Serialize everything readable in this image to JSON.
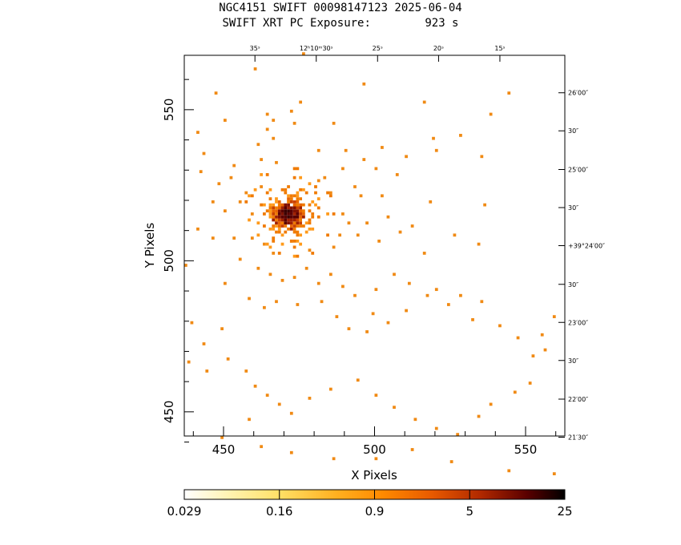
{
  "title_line1": "NGC4151 SWIFT 00098147123 2025-06-04",
  "title_line2": "SWIFT XRT PC Exposure:        923 s",
  "chart_data": {
    "type": "heatmap",
    "xlabel": "X Pixels",
    "ylabel": "Y Pixels",
    "xlim": [
      437,
      563
    ],
    "ylim": [
      442,
      568
    ],
    "x_ticks": [
      450,
      500,
      550
    ],
    "y_ticks": [
      450,
      500,
      550
    ],
    "x_tick_labels": [
      "450",
      "500",
      "550"
    ],
    "y_tick_labels": [
      "450",
      "500",
      "550"
    ],
    "ra_tick_labels": [
      {
        "x": 460.4,
        "label": "35ˢ"
      },
      {
        "x": 480.7,
        "label": "12ʰ10ᵐ30ˢ"
      },
      {
        "x": 501.0,
        "label": "25ˢ"
      },
      {
        "x": 521.2,
        "label": "20ˢ"
      },
      {
        "x": 541.5,
        "label": "15ˢ"
      }
    ],
    "dec_tick_labels": [
      {
        "y": 555.6,
        "label": "26′00″"
      },
      {
        "y": 543.0,
        "label": "30″"
      },
      {
        "y": 530.2,
        "label": "25′00″"
      },
      {
        "y": 517.6,
        "label": "30″"
      },
      {
        "y": 505.0,
        "label": "+39°24′00″"
      },
      {
        "y": 492.2,
        "label": "30″"
      },
      {
        "y": 479.6,
        "label": "23′00″"
      },
      {
        "y": 467.0,
        "label": "30″"
      },
      {
        "y": 454.2,
        "label": "22′00″"
      },
      {
        "y": 441.6,
        "label": "21′30″"
      }
    ],
    "source_center": [
      471,
      515
    ],
    "colorbar": {
      "labels": [
        "0.029",
        "0.16",
        "0.9",
        "5",
        "25"
      ],
      "scale": "log",
      "colors": [
        "#ffffff",
        "#ffe680",
        "#ffb000",
        "#ff7f00",
        "#e05000",
        "#b02800",
        "#700000",
        "#000000"
      ]
    },
    "counts_scatter": [
      [
        460,
        563
      ],
      [
        476,
        568
      ],
      [
        447,
        555
      ],
      [
        475,
        552
      ],
      [
        496,
        558
      ],
      [
        516,
        552
      ],
      [
        538,
        548
      ],
      [
        544,
        555
      ],
      [
        464,
        548
      ],
      [
        472,
        549
      ],
      [
        450,
        546
      ],
      [
        466,
        546
      ],
      [
        473,
        545
      ],
      [
        464,
        543
      ],
      [
        441,
        542
      ],
      [
        486,
        545
      ],
      [
        528,
        541
      ],
      [
        466,
        540
      ],
      [
        481,
        536
      ],
      [
        490,
        536
      ],
      [
        502,
        537
      ],
      [
        519,
        540
      ],
      [
        496,
        533
      ],
      [
        510,
        534
      ],
      [
        453,
        531
      ],
      [
        520,
        536
      ],
      [
        535,
        534
      ],
      [
        461,
        538
      ],
      [
        462,
        533
      ],
      [
        467,
        532
      ],
      [
        489,
        530
      ],
      [
        443,
        535
      ],
      [
        442,
        529
      ],
      [
        500,
        530
      ],
      [
        507,
        528
      ],
      [
        481,
        526
      ],
      [
        448,
        525
      ],
      [
        452,
        527
      ],
      [
        457,
        522
      ],
      [
        462,
        524
      ],
      [
        483,
        527
      ],
      [
        485,
        522
      ],
      [
        493,
        524
      ],
      [
        495,
        521
      ],
      [
        502,
        521
      ],
      [
        518,
        519
      ],
      [
        536,
        518
      ],
      [
        446,
        519
      ],
      [
        450,
        516
      ],
      [
        455,
        519
      ],
      [
        459,
        515
      ],
      [
        489,
        515
      ],
      [
        491,
        512
      ],
      [
        497,
        512
      ],
      [
        504,
        514
      ],
      [
        508,
        509
      ],
      [
        512,
        511
      ],
      [
        526,
        508
      ],
      [
        534,
        505
      ],
      [
        441,
        510
      ],
      [
        446,
        507
      ],
      [
        453,
        507
      ],
      [
        459,
        507
      ],
      [
        463,
        505
      ],
      [
        466,
        502
      ],
      [
        472,
        506
      ],
      [
        478,
        503
      ],
      [
        486,
        504
      ],
      [
        488,
        508
      ],
      [
        494,
        508
      ],
      [
        501,
        506
      ],
      [
        516,
        502
      ],
      [
        455,
        500
      ],
      [
        461,
        497
      ],
      [
        465,
        495
      ],
      [
        469,
        493
      ],
      [
        473,
        494
      ],
      [
        477,
        497
      ],
      [
        481,
        492
      ],
      [
        485,
        495
      ],
      [
        489,
        491
      ],
      [
        493,
        488
      ],
      [
        500,
        490
      ],
      [
        506,
        495
      ],
      [
        511,
        492
      ],
      [
        520,
        490
      ],
      [
        528,
        488
      ],
      [
        535,
        486
      ],
      [
        437,
        498
      ],
      [
        450,
        492
      ],
      [
        458,
        487
      ],
      [
        463,
        484
      ],
      [
        467,
        486
      ],
      [
        474,
        485
      ],
      [
        482,
        486
      ],
      [
        487,
        481
      ],
      [
        491,
        477
      ],
      [
        497,
        476
      ],
      [
        499,
        482
      ],
      [
        504,
        479
      ],
      [
        510,
        483
      ],
      [
        517,
        488
      ],
      [
        524,
        485
      ],
      [
        532,
        480
      ],
      [
        541,
        478
      ],
      [
        547,
        474
      ],
      [
        556,
        470
      ],
      [
        439,
        479
      ],
      [
        443,
        472
      ],
      [
        451,
        467
      ],
      [
        457,
        463
      ],
      [
        460,
        458
      ],
      [
        464,
        455
      ],
      [
        468,
        452
      ],
      [
        472,
        449
      ],
      [
        478,
        454
      ],
      [
        485,
        457
      ],
      [
        494,
        460
      ],
      [
        500,
        455
      ],
      [
        506,
        451
      ],
      [
        513,
        447
      ],
      [
        520,
        444
      ],
      [
        527,
        442
      ],
      [
        534,
        448
      ],
      [
        538,
        452
      ],
      [
        546,
        456
      ],
      [
        551,
        459
      ],
      [
        458,
        447
      ],
      [
        449,
        441
      ],
      [
        462,
        438
      ],
      [
        472,
        436
      ],
      [
        486,
        434
      ],
      [
        500,
        434
      ],
      [
        512,
        437
      ],
      [
        525,
        433
      ],
      [
        544,
        430
      ],
      [
        559,
        429
      ],
      [
        438,
        466
      ],
      [
        444,
        463
      ],
      [
        449,
        477
      ],
      [
        552,
        468
      ],
      [
        555,
        475
      ],
      [
        559,
        481
      ]
    ]
  }
}
